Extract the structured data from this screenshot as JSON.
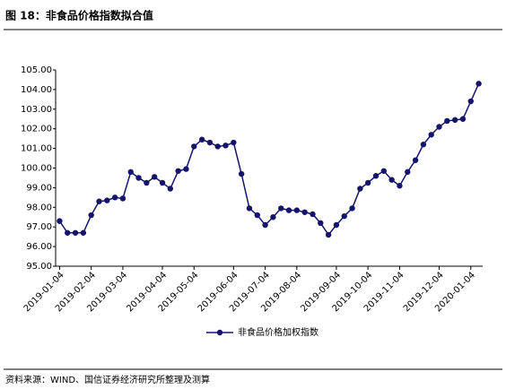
{
  "header": {
    "title": "图 18：非食品价格指数拟合值"
  },
  "chart_data": {
    "type": "line",
    "categories": [
      "2019-01-04",
      null,
      null,
      null,
      "2019-02-04",
      null,
      null,
      null,
      "2019-03-04",
      null,
      null,
      null,
      null,
      "2019-04-04",
      null,
      null,
      null,
      "2019-05-04",
      null,
      null,
      null,
      null,
      "2019-06-04",
      null,
      null,
      null,
      "2019-07-04",
      null,
      null,
      null,
      "2019-08-04",
      null,
      null,
      null,
      null,
      "2019-09-04",
      null,
      null,
      null,
      "2019-10-04",
      null,
      null,
      null,
      "2019-11-04",
      null,
      null,
      null,
      null,
      "2019-12-04",
      null,
      null,
      null,
      "2020-01-04",
      null
    ],
    "series": [
      {
        "name": "非食品价格加权指数",
        "color": "#14146b",
        "values": [
          97.3,
          96.7,
          96.7,
          96.7,
          97.6,
          98.3,
          98.35,
          98.5,
          98.45,
          99.8,
          99.5,
          99.25,
          99.55,
          99.25,
          98.95,
          99.85,
          99.95,
          101.1,
          101.45,
          101.3,
          101.1,
          101.15,
          101.3,
          99.7,
          97.95,
          97.6,
          97.1,
          97.5,
          97.95,
          97.85,
          97.85,
          97.75,
          97.65,
          97.2,
          96.6,
          97.1,
          97.55,
          97.95,
          98.95,
          99.25,
          99.6,
          99.85,
          99.4,
          99.1,
          99.8,
          100.4,
          101.2,
          101.7,
          102.1,
          102.4,
          102.45,
          102.5,
          103.4,
          104.3
        ]
      }
    ],
    "ylim": [
      95,
      105
    ],
    "yticks": [
      {
        "value": 95,
        "label": "95.00"
      },
      {
        "value": 96,
        "label": "96.00"
      },
      {
        "value": 97,
        "label": "97.00"
      },
      {
        "value": 98,
        "label": "98.00"
      },
      {
        "value": 99,
        "label": "99.00"
      },
      {
        "value": 100,
        "label": "100.00"
      },
      {
        "value": 101,
        "label": "101.00"
      },
      {
        "value": 102,
        "label": "102.00"
      },
      {
        "value": 103,
        "label": "103.00"
      },
      {
        "value": 104,
        "label": "104.00"
      },
      {
        "value": 105,
        "label": "105.00"
      }
    ],
    "legend": "bottom"
  },
  "footer": {
    "source": "资料来源：WIND、国信证券经济研究所整理及测算"
  }
}
